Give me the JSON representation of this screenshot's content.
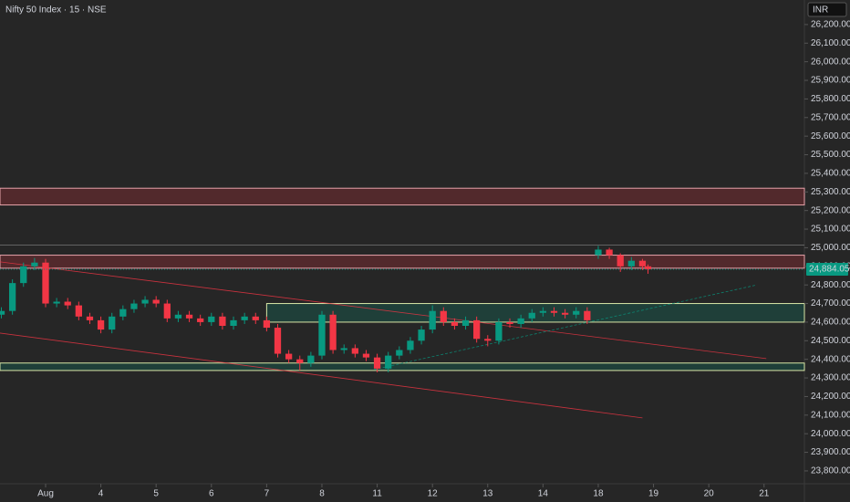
{
  "chart_data": {
    "type": "candlestick",
    "title": "Nifty 50 Index · 15 · NSE",
    "currency": "INR",
    "up_color": "#089981",
    "down_color": "#f23645",
    "xlim": [
      -0.825,
      13.73
    ],
    "xticks": [
      {
        "value": 0,
        "label": "Aug"
      },
      {
        "value": 1,
        "label": "4"
      },
      {
        "value": 2,
        "label": "5"
      },
      {
        "value": 3,
        "label": "6"
      },
      {
        "value": 4,
        "label": "7"
      },
      {
        "value": 5,
        "label": "8"
      },
      {
        "value": 6,
        "label": "11"
      },
      {
        "value": 7,
        "label": "12"
      },
      {
        "value": 8,
        "label": "13"
      },
      {
        "value": 9,
        "label": "14"
      },
      {
        "value": 10,
        "label": "18"
      },
      {
        "value": 11,
        "label": "19"
      },
      {
        "value": 12,
        "label": "20"
      },
      {
        "value": 13,
        "label": "21"
      }
    ],
    "ylim": [
      23731,
      26332
    ],
    "yticks": [
      {
        "value": 23800,
        "label": "23,800.00"
      },
      {
        "value": 23900,
        "label": "23,900.00"
      },
      {
        "value": 24000,
        "label": "24,000.00"
      },
      {
        "value": 24100,
        "label": "24,100.00"
      },
      {
        "value": 24200,
        "label": "24,200.00"
      },
      {
        "value": 24300,
        "label": "24,300.00"
      },
      {
        "value": 24400,
        "label": "24,400.00"
      },
      {
        "value": 24500,
        "label": "24,500.00"
      },
      {
        "value": 24600,
        "label": "24,600.00"
      },
      {
        "value": 24700,
        "label": "24,700.00"
      },
      {
        "value": 24800,
        "label": "24,800.00"
      },
      {
        "value": 24900,
        "label": "24,900.00"
      },
      {
        "value": 25000,
        "label": "25,000.00"
      },
      {
        "value": 25100,
        "label": "25,100.00"
      },
      {
        "value": 25200,
        "label": "25,200.00"
      },
      {
        "value": 25300,
        "label": "25,300.00"
      },
      {
        "value": 25400,
        "label": "25,400.00"
      },
      {
        "value": 25500,
        "label": "25,500.00"
      },
      {
        "value": 25600,
        "label": "25,600.00"
      },
      {
        "value": 25700,
        "label": "25,700.00"
      },
      {
        "value": 25800,
        "label": "25,800.00"
      },
      {
        "value": 25900,
        "label": "25,900.00"
      },
      {
        "value": 26000,
        "label": "26,000.00"
      },
      {
        "value": 26100,
        "label": "26,100.00"
      },
      {
        "value": 26200,
        "label": "26,200.00"
      }
    ],
    "last_price": {
      "value": 24884.05,
      "label": "24,884.05"
    },
    "x": [
      -0.8,
      -0.6,
      -0.4,
      -0.2,
      0,
      0.2,
      0.4,
      0.6,
      0.8,
      1.0,
      1.2,
      1.4,
      1.6,
      1.8,
      2.0,
      2.2,
      2.4,
      2.6,
      2.8,
      3.0,
      3.2,
      3.4,
      3.6,
      3.8,
      4.0,
      4.2,
      4.4,
      4.6,
      4.8,
      5.0,
      5.2,
      5.4,
      5.6,
      5.8,
      6.0,
      6.2,
      6.4,
      6.6,
      6.8,
      7.0,
      7.2,
      7.4,
      7.6,
      7.8,
      8.0,
      8.2,
      8.4,
      8.6,
      8.8,
      9.0,
      9.2,
      9.4,
      9.6,
      9.8,
      10.0,
      10.2,
      10.4,
      10.6,
      10.8,
      10.9
    ],
    "open": [
      24640,
      24660,
      24810,
      24900,
      24920,
      24700,
      24710,
      24690,
      24630,
      24610,
      24560,
      24630,
      24670,
      24700,
      24720,
      24700,
      24620,
      24640,
      24620,
      24600,
      24630,
      24580,
      24610,
      24630,
      24610,
      24570,
      24430,
      24400,
      24380,
      24420,
      24640,
      24450,
      24460,
      24430,
      24410,
      24350,
      24420,
      24450,
      24500,
      24560,
      24660,
      24600,
      24580,
      24610,
      24510,
      24500,
      24600,
      24590,
      24620,
      24650,
      24660,
      24650,
      24640,
      24660,
      24960,
      24990,
      24960,
      24900,
      24930,
      24900
    ],
    "high": [
      24680,
      24830,
      24920,
      24945,
      24940,
      24730,
      24730,
      24710,
      24650,
      24630,
      24650,
      24690,
      24720,
      24740,
      24740,
      24720,
      24660,
      24660,
      24640,
      24650,
      24650,
      24630,
      24650,
      24650,
      24630,
      24590,
      24450,
      24420,
      24440,
      24660,
      24660,
      24480,
      24480,
      24450,
      24430,
      24440,
      24470,
      24520,
      24580,
      24690,
      24680,
      24620,
      24630,
      24630,
      24530,
      24620,
      24620,
      24640,
      24670,
      24680,
      24680,
      24670,
      24680,
      24680,
      25010,
      25000,
      24970,
      24950,
      24940,
      24910
    ],
    "low": [
      24620,
      24640,
      24790,
      24880,
      24680,
      24680,
      24670,
      24610,
      24590,
      24540,
      24540,
      24610,
      24650,
      24680,
      24680,
      24600,
      24600,
      24600,
      24580,
      24580,
      24560,
      24560,
      24590,
      24590,
      24550,
      24410,
      24380,
      24340,
      24360,
      24400,
      24430,
      24430,
      24410,
      24390,
      24330,
      24330,
      24400,
      24430,
      24480,
      24540,
      24580,
      24560,
      24560,
      24490,
      24470,
      24480,
      24570,
      24570,
      24600,
      24630,
      24630,
      24620,
      24620,
      24590,
      24940,
      24940,
      24870,
      24880,
      24880,
      24860
    ],
    "close": [
      24660,
      24810,
      24900,
      24920,
      24700,
      24710,
      24690,
      24630,
      24610,
      24560,
      24630,
      24670,
      24700,
      24720,
      24700,
      24620,
      24640,
      24620,
      24600,
      24630,
      24580,
      24610,
      24630,
      24610,
      24570,
      24430,
      24400,
      24380,
      24420,
      24640,
      24450,
      24460,
      24430,
      24410,
      24350,
      24420,
      24450,
      24500,
      24560,
      24660,
      24600,
      24580,
      24610,
      24510,
      24500,
      24600,
      24590,
      24620,
      24650,
      24660,
      24650,
      24640,
      24660,
      24610,
      24990,
      24960,
      24900,
      24930,
      24900,
      24884
    ],
    "zones": [
      {
        "color": "#f23645",
        "high": 25320,
        "low": 25230
      },
      {
        "color": "#f23645",
        "high": 24960,
        "low": 24890
      },
      {
        "color": "#089981",
        "high": 24700,
        "low": 24600,
        "start": 4
      },
      {
        "color": "#089981",
        "high": 24380,
        "low": 24340
      }
    ],
    "levels": [
      25015
    ],
    "trendlines": [
      {
        "color": "#f23645",
        "x": [
          -0.825,
          13.04
        ],
        "y": [
          24924,
          24404
        ]
      },
      {
        "color": "#f23645",
        "x": [
          -0.825,
          10.8
        ],
        "y": [
          24541,
          24085
        ]
      },
      {
        "color": "#089981",
        "x": [
          5.94,
          12.87
        ],
        "y": [
          24345,
          24800
        ],
        "dashed": true
      }
    ]
  }
}
